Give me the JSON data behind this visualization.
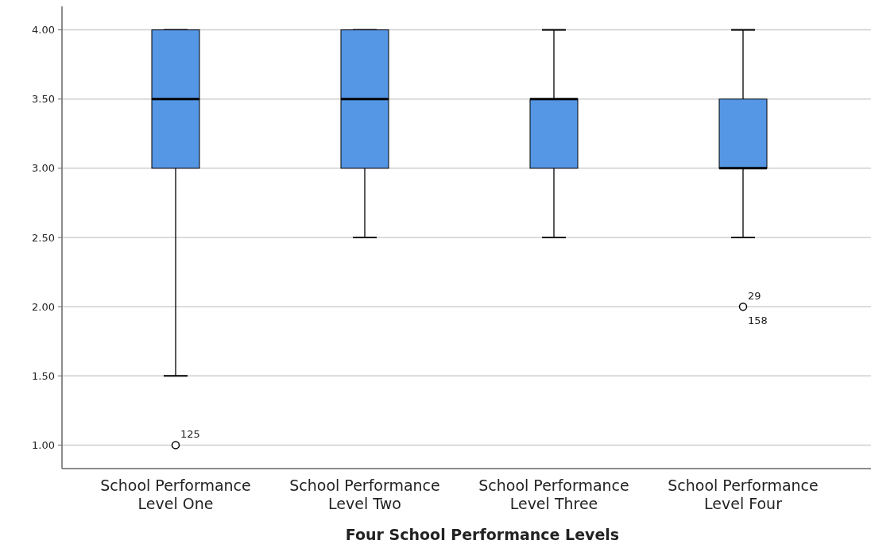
{
  "chart_data": {
    "type": "box",
    "xlabel": "Four School Performance Levels",
    "categories": [
      "School Performance Level One",
      "School Performance Level Two",
      "School Performance Level Three",
      "School Performance Level Four"
    ],
    "series": [
      {
        "color": "#5596e5",
        "boxes": [
          {
            "low": 1.5,
            "q1": 3,
            "median": 3.5,
            "q3": 4,
            "high": 4,
            "outliers": [
              1
            ]
          },
          {
            "low": 2.5,
            "q1": 3,
            "median": 3.5,
            "q3": 4,
            "high": 4
          },
          {
            "low": 2.5,
            "q1": 3,
            "median": 3.5,
            "q3": 3.5,
            "high": 4
          },
          {
            "low": 2.5,
            "q1": 3,
            "median": 3,
            "q3": 3.5,
            "high": 4,
            "outliers": [
              2
            ]
          }
        ]
      }
    ],
    "ylim": [
      0.83,
      4.17
    ],
    "yticks": [
      {
        "value": 1,
        "label": "1.00"
      },
      {
        "value": 1.5,
        "label": "1.50"
      },
      {
        "value": 2,
        "label": "2.00"
      },
      {
        "value": 2.5,
        "label": "2.50"
      },
      {
        "value": 3,
        "label": "3.00"
      },
      {
        "value": 3.5,
        "label": "3.50"
      },
      {
        "value": 4,
        "label": "4.00"
      }
    ],
    "grid": "y",
    "annotations": [
      "125",
      "29",
      "158"
    ]
  }
}
